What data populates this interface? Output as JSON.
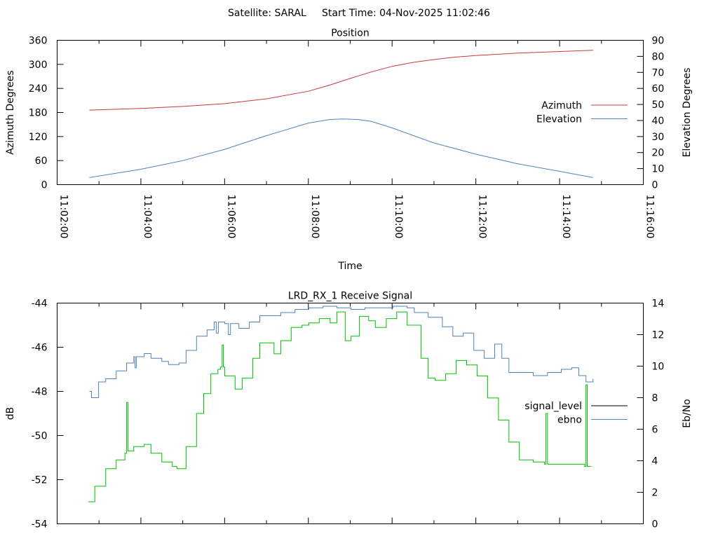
{
  "suptitle": "Satellite: SARAL     Start Time: 04-Nov-2025 11:02:46",
  "colors": {
    "azimuth": "#c8383c",
    "elevation": "#4f81bd",
    "signal_level_legend": "#000000",
    "ebno": "#4f81bd",
    "green_trace": "#00c000"
  },
  "chart_data": [
    {
      "type": "line",
      "title": "Position",
      "xlabel": "Time",
      "ylabel": "Azimuth Degrees",
      "y2label": "Elevation Degrees",
      "x_units": "minutes after 11:02:00",
      "xlim": [
        0,
        14
      ],
      "ylim": [
        0,
        360
      ],
      "y2lim": [
        0,
        90
      ],
      "xticks": [
        0,
        2,
        4,
        6,
        8,
        10,
        12,
        14
      ],
      "xtick_labels": [
        "11:02:00",
        "11:04:00",
        "11:06:00",
        "11:08:00",
        "11:10:00",
        "11:12:00",
        "11:14:00",
        "11:16:00"
      ],
      "yticks": [
        "0",
        "60",
        "120",
        "180",
        "240",
        "300",
        "360"
      ],
      "y2ticks": [
        "0",
        "10",
        "20",
        "30",
        "40",
        "50",
        "60",
        "70",
        "80",
        "90"
      ],
      "legend_position": "right",
      "series": [
        {
          "name": "Azimuth",
          "axis": "y",
          "color": "#c8383c",
          "x": [
            0.77,
            2,
            3,
            4,
            5,
            6,
            6.5,
            7,
            7.5,
            8,
            8.5,
            9,
            9.5,
            10,
            11,
            12,
            12.8
          ],
          "y": [
            186,
            190,
            195,
            202,
            214,
            233,
            248,
            265,
            281,
            295,
            305,
            312,
            318,
            322,
            328,
            332,
            335
          ]
        },
        {
          "name": "Elevation",
          "axis": "y2",
          "color": "#4f81bd",
          "x": [
            0.77,
            2,
            3,
            4,
            5,
            6,
            6.5,
            6.83,
            7.2,
            7.5,
            8,
            9,
            10,
            11,
            12,
            12.8
          ],
          "y": [
            4.4,
            9.6,
            15,
            22,
            30.6,
            38.4,
            40.6,
            41,
            40.6,
            39.5,
            35.4,
            26,
            19,
            13,
            8.3,
            4.4
          ]
        }
      ]
    },
    {
      "type": "line",
      "title": "LRD_RX_1 Receive Signal",
      "ylabel": "dB",
      "y2label": "Eb/No",
      "x_units": "minutes after 11:02:00",
      "xlim": [
        0,
        14
      ],
      "ylim": [
        -54,
        -44
      ],
      "y2lim": [
        0,
        14
      ],
      "yticks": [
        "-54",
        "-52",
        "-50",
        "-48",
        "-46",
        "-44"
      ],
      "y2ticks": [
        "0",
        "2",
        "4",
        "6",
        "8",
        "10",
        "12",
        "14"
      ],
      "legend_position": "right",
      "legend": [
        {
          "name": "signal_level",
          "color": "#000000"
        },
        {
          "name": "ebno",
          "color": "#4f81bd"
        }
      ],
      "series": [
        {
          "name": "signal_level",
          "axis": "y",
          "color": "#00c000",
          "x": [
            0.74,
            0.9,
            1.16,
            1.41,
            1.62,
            1.66,
            1.69,
            1.83,
            2.08,
            2.24,
            2.5,
            2.75,
            2.86,
            3.08,
            3.33,
            3.5,
            3.67,
            3.84,
            3.9,
            3.94,
            3.97,
            4.0,
            4.25,
            4.42,
            4.67,
            4.84,
            5.01,
            5.18,
            5.34,
            5.59,
            5.85,
            6.01,
            6.26,
            6.52,
            6.68,
            6.88,
            7.02,
            7.22,
            7.44,
            7.6,
            7.86,
            8.11,
            8.36,
            8.69,
            8.86,
            9.03,
            9.28,
            9.53,
            9.78,
            10.03,
            10.28,
            10.54,
            10.79,
            11.04,
            11.37,
            11.64,
            11.67,
            11.71,
            11.88,
            12.21,
            12.6,
            12.63,
            12.66,
            12.76
          ],
          "y": [
            -53.0,
            -52.3,
            -51.5,
            -51.1,
            -50.8,
            -48.5,
            -50.7,
            -50.5,
            -50.4,
            -50.8,
            -51.2,
            -51.4,
            -51.5,
            -50.5,
            -49.0,
            -48.1,
            -47.2,
            -47.0,
            -46.9,
            -45.9,
            -46.9,
            -47.3,
            -47.9,
            -47.4,
            -46.5,
            -45.8,
            -45.8,
            -46.3,
            -45.7,
            -45.1,
            -45.0,
            -44.9,
            -44.7,
            -44.9,
            -44.4,
            -45.7,
            -45.5,
            -44.6,
            -44.8,
            -45.1,
            -44.7,
            -44.4,
            -45.0,
            -46.5,
            -47.4,
            -47.5,
            -47.2,
            -46.6,
            -46.8,
            -47.3,
            -48.3,
            -49.3,
            -50.3,
            -51.1,
            -51.2,
            -51.3,
            -49.0,
            -51.3,
            -51.3,
            -51.3,
            -51.4,
            -47.7,
            -51.4,
            -51.4
          ]
        },
        {
          "name": "ebno",
          "axis": "y2",
          "color": "#4f81bd",
          "x": [
            0.77,
            0.82,
            0.99,
            1.16,
            1.41,
            1.66,
            1.83,
            1.86,
            1.89,
            2.08,
            2.24,
            2.5,
            2.66,
            2.91,
            3.08,
            3.33,
            3.58,
            3.75,
            3.8,
            3.85,
            4.0,
            4.09,
            4.14,
            4.34,
            4.59,
            4.84,
            5.09,
            5.34,
            5.68,
            6.01,
            6.35,
            6.68,
            7.02,
            7.35,
            7.69,
            8.02,
            8.36,
            8.53,
            8.86,
            9.2,
            9.45,
            9.7,
            9.95,
            10.2,
            10.45,
            10.62,
            10.79,
            11.04,
            11.37,
            11.71,
            12.04,
            12.29,
            12.46,
            12.63,
            12.8
          ],
          "y": [
            8.4,
            8.0,
            9.0,
            9.2,
            9.7,
            10.2,
            10.6,
            9.9,
            10.6,
            10.8,
            10.5,
            10.3,
            10.1,
            10.2,
            11.0,
            11.9,
            12.3,
            12.8,
            12.1,
            12.8,
            12.7,
            12.0,
            12.7,
            12.4,
            12.8,
            13.2,
            13.2,
            13.4,
            13.6,
            13.7,
            13.8,
            13.7,
            13.6,
            13.7,
            13.7,
            13.8,
            13.7,
            13.4,
            13.1,
            12.5,
            11.9,
            12.1,
            11.0,
            10.5,
            11.4,
            10.5,
            9.6,
            9.6,
            9.4,
            9.6,
            9.8,
            9.9,
            9.4,
            9.0,
            9.2
          ]
        }
      ]
    }
  ]
}
